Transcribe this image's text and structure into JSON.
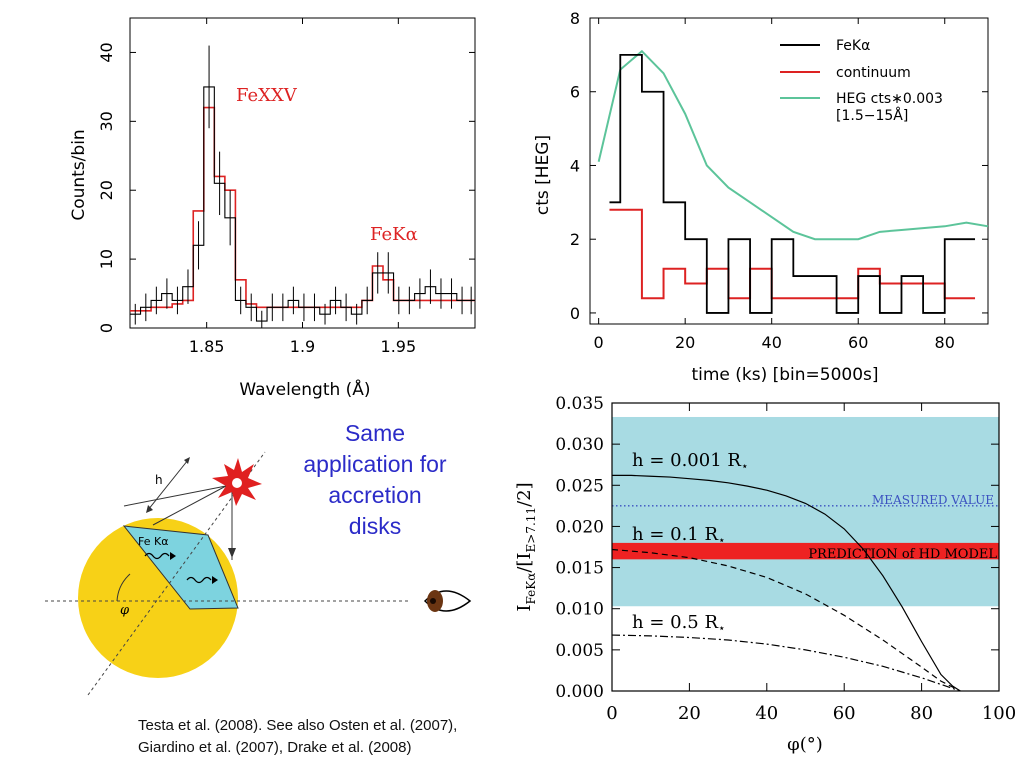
{
  "slide": {
    "promo_text": "Same application for accretion disks",
    "citation_line1": "Testa et al. (2008). See also Osten et al. (2007),",
    "citation_line2": "Giardino et al. (2007), Drake et al. (2008)"
  },
  "colors": {
    "observed": "#000000",
    "model": "#dd2222",
    "heg": "#5cc49a",
    "measured_band": "#a8dbe3",
    "prediction_band": "#ee2222",
    "measured_line": "#3a50c0",
    "star_disk": "#f7d117",
    "reflect_cap": "#7dd3df"
  },
  "chart_data": [
    {
      "type": "line",
      "step": true,
      "xlabel": "Wavelength (Å)",
      "ylabel": "Counts/bin",
      "xlim": [
        1.81,
        1.99
      ],
      "ylim": [
        0,
        45
      ],
      "xticks": [
        1.85,
        1.9,
        1.95
      ],
      "xtick_labels": [
        "1.85",
        "1.9",
        "1.95"
      ],
      "yticks": [
        0,
        10,
        20,
        30,
        40
      ],
      "annotations": [
        {
          "text": "FeXXV",
          "x": 1.869,
          "y": 32.5
        },
        {
          "text": "FeKα",
          "x": 1.931,
          "y": 12.5
        }
      ],
      "series": [
        {
          "name": "",
          "role": "observed",
          "edges": [
            1.81,
            1.8155,
            1.821,
            1.8265,
            1.832,
            1.8375,
            1.843,
            1.8485,
            1.854,
            1.8595,
            1.865,
            1.8705,
            1.876,
            1.8815,
            1.887,
            1.8925,
            1.898,
            1.9035,
            1.909,
            1.9145,
            1.92,
            1.9255,
            1.931,
            1.9365,
            1.942,
            1.9475,
            1.953,
            1.9585,
            1.964,
            1.9695,
            1.975,
            1.9805,
            1.986,
            1.99
          ],
          "values": [
            2,
            3,
            4,
            5,
            4,
            6,
            12,
            35,
            21,
            16,
            4,
            3,
            1,
            3,
            3,
            4,
            3,
            3,
            2,
            4,
            3,
            2,
            4,
            8,
            8,
            4,
            4,
            5,
            6,
            5,
            5,
            4,
            4
          ],
          "errors": [
            1.5,
            2,
            2,
            2.2,
            2,
            2.5,
            3.5,
            6,
            4.6,
            4,
            2,
            2,
            1.5,
            2,
            2,
            2,
            2,
            2,
            1.5,
            2,
            2,
            1.5,
            2,
            3,
            3,
            2,
            2,
            2.2,
            2.5,
            2.2,
            2.2,
            2,
            2
          ]
        },
        {
          "name": "",
          "role": "model",
          "edges": [
            1.81,
            1.8155,
            1.821,
            1.8265,
            1.832,
            1.8375,
            1.843,
            1.8485,
            1.854,
            1.8595,
            1.865,
            1.8705,
            1.876,
            1.8815,
            1.887,
            1.8925,
            1.898,
            1.9035,
            1.909,
            1.9145,
            1.92,
            1.9255,
            1.931,
            1.9365,
            1.942,
            1.9475,
            1.953,
            1.9585,
            1.964,
            1.9695,
            1.975,
            1.9805,
            1.986,
            1.99
          ],
          "values": [
            2.5,
            2.5,
            3,
            3,
            3.5,
            4,
            17,
            32,
            22,
            20,
            7,
            3.5,
            3,
            3,
            3,
            3,
            3,
            3,
            3,
            3,
            3,
            3,
            4,
            9,
            7,
            4,
            4,
            4,
            4,
            4,
            4,
            4,
            4
          ]
        }
      ]
    },
    {
      "type": "line",
      "xlabel": "time (ks) [bin=5000s]",
      "ylabel": "cts [HEG]",
      "xlim": [
        -2,
        90
      ],
      "ylim": [
        -0.3,
        8
      ],
      "xticks": [
        0,
        20,
        40,
        60,
        80
      ],
      "yticks": [
        0,
        2,
        4,
        6,
        8
      ],
      "legend": {
        "position": "top-right"
      },
      "series": [
        {
          "name": "FeKα",
          "step": true,
          "edges": [
            2.5,
            5,
            10,
            15,
            20,
            25,
            30,
            35,
            40,
            45,
            50,
            55,
            60,
            65,
            70,
            75,
            80,
            85,
            87
          ],
          "values": [
            3,
            7,
            6,
            3,
            2,
            0,
            2,
            0,
            2,
            1,
            1,
            0,
            1,
            0,
            1,
            0,
            2,
            2
          ]
        },
        {
          "name": "continuum",
          "step": true,
          "edges": [
            2.5,
            10,
            15,
            20,
            25,
            30,
            35,
            40,
            45,
            50,
            55,
            60,
            65,
            70,
            75,
            80,
            85,
            87
          ],
          "values": [
            2.8,
            0.4,
            1.2,
            0.8,
            1.2,
            0.4,
            1.2,
            0.4,
            0.4,
            0.4,
            0.4,
            1.2,
            0.8,
            0.8,
            0.8,
            0.4,
            0.4
          ]
        },
        {
          "name": "HEG cts∗0.003 [1.5−15Å]",
          "legend_lines": [
            "HEG cts∗0.003",
            "[1.5−15Å]"
          ],
          "x": [
            0,
            5,
            10,
            15,
            20,
            25,
            30,
            35,
            40,
            45,
            50,
            55,
            60,
            65,
            70,
            75,
            80,
            85,
            90
          ],
          "y": [
            4.1,
            6.6,
            7.1,
            6.5,
            5.4,
            4.0,
            3.4,
            3.0,
            2.6,
            2.2,
            2.0,
            2.0,
            2.0,
            2.2,
            2.25,
            2.3,
            2.35,
            2.45,
            2.35
          ]
        }
      ]
    },
    {
      "type": "line",
      "xlabel": "φ(°)",
      "ylabel": "I_FeKα/[I_E>7.11/2]",
      "ylabel_parts": {
        "a": "I",
        "a_sub": "FeKα",
        "b": "/[I",
        "b_sub": "E>7.11",
        "c": "/2]"
      },
      "xlim": [
        0,
        100
      ],
      "ylim": [
        0,
        0.035
      ],
      "xticks": [
        0,
        20,
        40,
        60,
        80,
        100
      ],
      "yticks": [
        0.0,
        0.005,
        0.01,
        0.015,
        0.02,
        0.025,
        0.03,
        0.035
      ],
      "ytick_labels": [
        "0.000",
        "0.005",
        "0.010",
        "0.015",
        "0.020",
        "0.025",
        "0.030",
        "0.035"
      ],
      "bands": [
        {
          "label": "",
          "role": "measured_band",
          "y0": 0.0103,
          "y1": 0.0333
        },
        {
          "label": "PREDICTION of HD MODEL",
          "role": "prediction_band",
          "y0": 0.016,
          "y1": 0.018
        }
      ],
      "hlines": [
        {
          "label": "MEASURED VALUE",
          "y": 0.0225
        }
      ],
      "series": [
        {
          "name": "h = 0.001 R⋆",
          "label_main": "h = 0.001 R",
          "style": "solid",
          "x": [
            0,
            5,
            10,
            15,
            20,
            25,
            30,
            35,
            40,
            45,
            50,
            55,
            60,
            65,
            70,
            75,
            80,
            85,
            88,
            90
          ],
          "y": [
            0.0262,
            0.0262,
            0.0261,
            0.026,
            0.0258,
            0.0256,
            0.0253,
            0.0249,
            0.0244,
            0.0237,
            0.0228,
            0.0215,
            0.0197,
            0.0172,
            0.014,
            0.0102,
            0.006,
            0.002,
            0.0006,
            0.0
          ]
        },
        {
          "name": "h = 0.1 R⋆",
          "label_main": "h = 0.1 R",
          "style": "dashed",
          "x": [
            0,
            10,
            20,
            30,
            40,
            50,
            60,
            70,
            80,
            85,
            90
          ],
          "y": [
            0.0172,
            0.0168,
            0.0162,
            0.0152,
            0.0138,
            0.0118,
            0.0092,
            0.0062,
            0.0029,
            0.0012,
            0.0
          ]
        },
        {
          "name": "h = 0.5 R⋆",
          "label_main": "h = 0.5 R",
          "style": "dashdot",
          "x": [
            0,
            10,
            20,
            30,
            40,
            50,
            60,
            70,
            80,
            85,
            90
          ],
          "y": [
            0.0068,
            0.0067,
            0.0065,
            0.0062,
            0.0057,
            0.005,
            0.0041,
            0.003,
            0.0016,
            0.0008,
            0.0
          ]
        }
      ]
    }
  ],
  "diagram": {
    "label_fe_ka": "Fe Kα",
    "label_h": "h",
    "label_phi": "φ"
  }
}
